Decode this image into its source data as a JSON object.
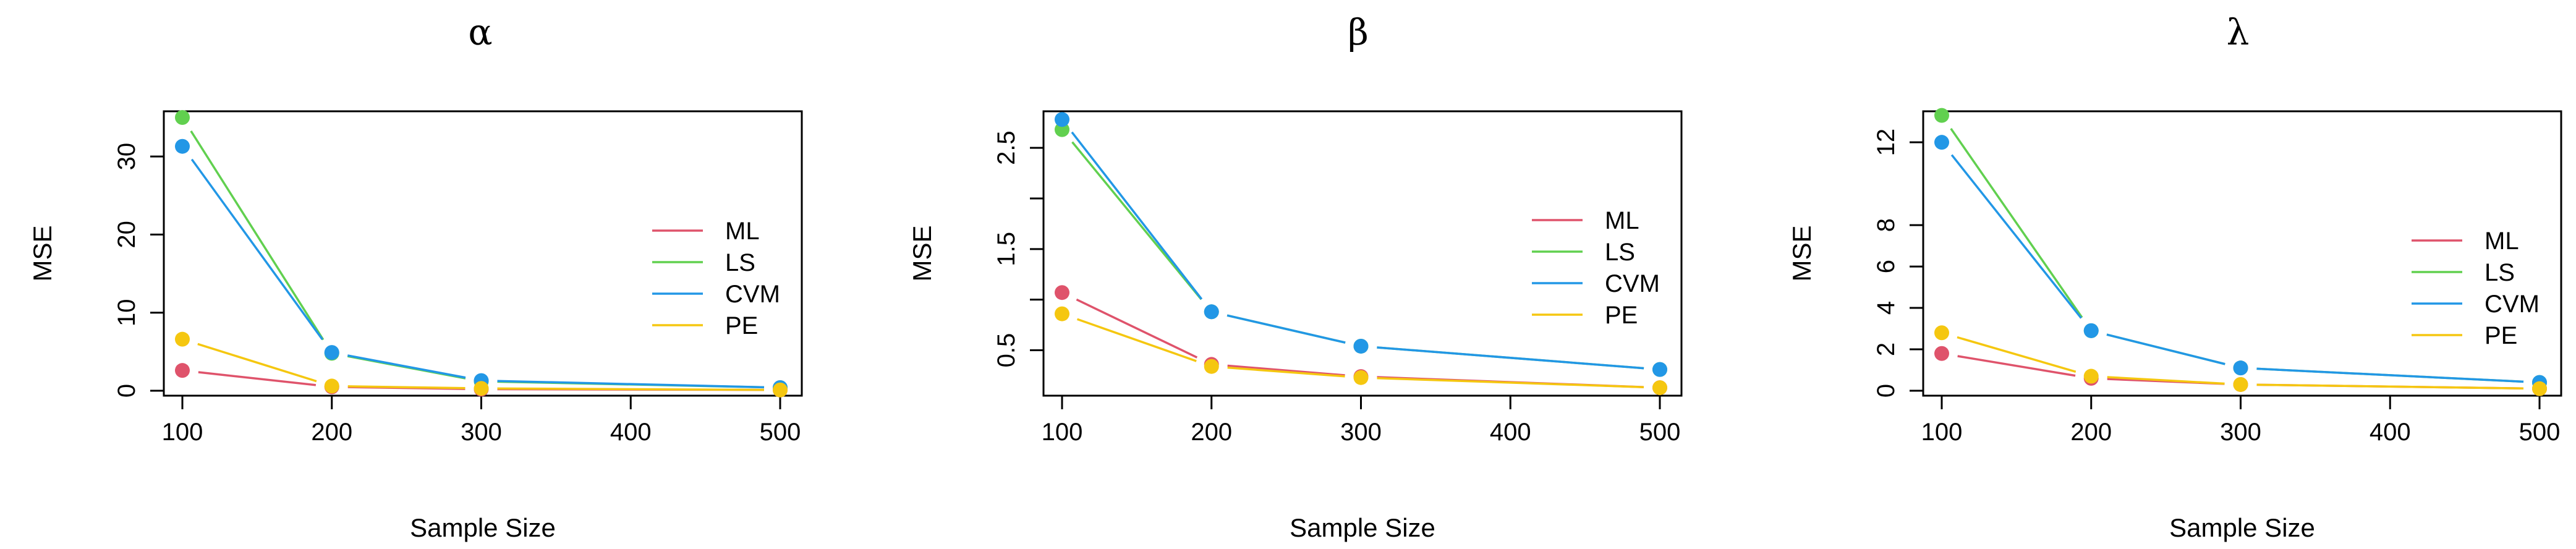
{
  "chart_data": [
    {
      "type": "line",
      "title": "α",
      "xlabel": "Sample Size",
      "ylabel": "MSE",
      "x": [
        100,
        200,
        300,
        500
      ],
      "xticks": [
        100,
        200,
        300,
        400,
        500
      ],
      "xlim": [
        100,
        500
      ],
      "ylim": [
        0,
        35
      ],
      "yticks": [
        0,
        10,
        20,
        30
      ],
      "ytick_labels": [
        "0",
        "10",
        "20",
        "30"
      ],
      "legend_position": "right",
      "series": [
        {
          "name": "ML",
          "color": "#DF536B",
          "values": [
            2.6,
            0.5,
            0.2,
            0.1
          ]
        },
        {
          "name": "LS",
          "color": "#61D04F",
          "values": [
            35.0,
            4.8,
            1.2,
            0.4
          ]
        },
        {
          "name": "CVM",
          "color": "#2297E6",
          "values": [
            31.3,
            4.9,
            1.3,
            0.4
          ]
        },
        {
          "name": "PE",
          "color": "#F5C710",
          "values": [
            6.6,
            0.6,
            0.3,
            0.1
          ]
        }
      ]
    },
    {
      "type": "line",
      "title": "β",
      "xlabel": "Sample Size",
      "ylabel": "MSE",
      "x": [
        100,
        200,
        300,
        500
      ],
      "xticks": [
        100,
        200,
        300,
        400,
        500
      ],
      "xlim": [
        100,
        500
      ],
      "ylim": [
        0.1,
        2.8
      ],
      "yticks": [
        0.5,
        1.0,
        1.5,
        2.0,
        2.5
      ],
      "ytick_labels": [
        "0.5",
        "",
        "1.5",
        "",
        "2.5"
      ],
      "legend_position": "right",
      "series": [
        {
          "name": "ML",
          "color": "#DF536B",
          "values": [
            1.07,
            0.36,
            0.24,
            0.13
          ]
        },
        {
          "name": "LS",
          "color": "#61D04F",
          "values": [
            2.68,
            0.88,
            0.54,
            0.31
          ]
        },
        {
          "name": "CVM",
          "color": "#2297E6",
          "values": [
            2.78,
            0.88,
            0.54,
            0.31
          ]
        },
        {
          "name": "PE",
          "color": "#F5C710",
          "values": [
            0.86,
            0.34,
            0.23,
            0.13
          ]
        }
      ]
    },
    {
      "type": "line",
      "title": "λ",
      "xlabel": "Sample Size",
      "ylabel": "MSE",
      "x": [
        100,
        200,
        300,
        500
      ],
      "xticks": [
        100,
        200,
        300,
        400,
        500
      ],
      "xlim": [
        100,
        500
      ],
      "ylim": [
        0,
        13.2
      ],
      "yticks": [
        0,
        2,
        4,
        6,
        8,
        12
      ],
      "ytick_labels": [
        "0",
        "2",
        "4",
        "6",
        "8",
        "12"
      ],
      "legend_position": "right",
      "series": [
        {
          "name": "ML",
          "color": "#DF536B",
          "values": [
            1.8,
            0.6,
            0.3,
            0.1
          ]
        },
        {
          "name": "LS",
          "color": "#61D04F",
          "values": [
            13.3,
            2.9,
            1.1,
            0.4
          ]
        },
        {
          "name": "CVM",
          "color": "#2297E6",
          "values": [
            12.0,
            2.9,
            1.1,
            0.4
          ]
        },
        {
          "name": "PE",
          "color": "#F5C710",
          "values": [
            2.8,
            0.7,
            0.3,
            0.1
          ]
        }
      ]
    }
  ]
}
